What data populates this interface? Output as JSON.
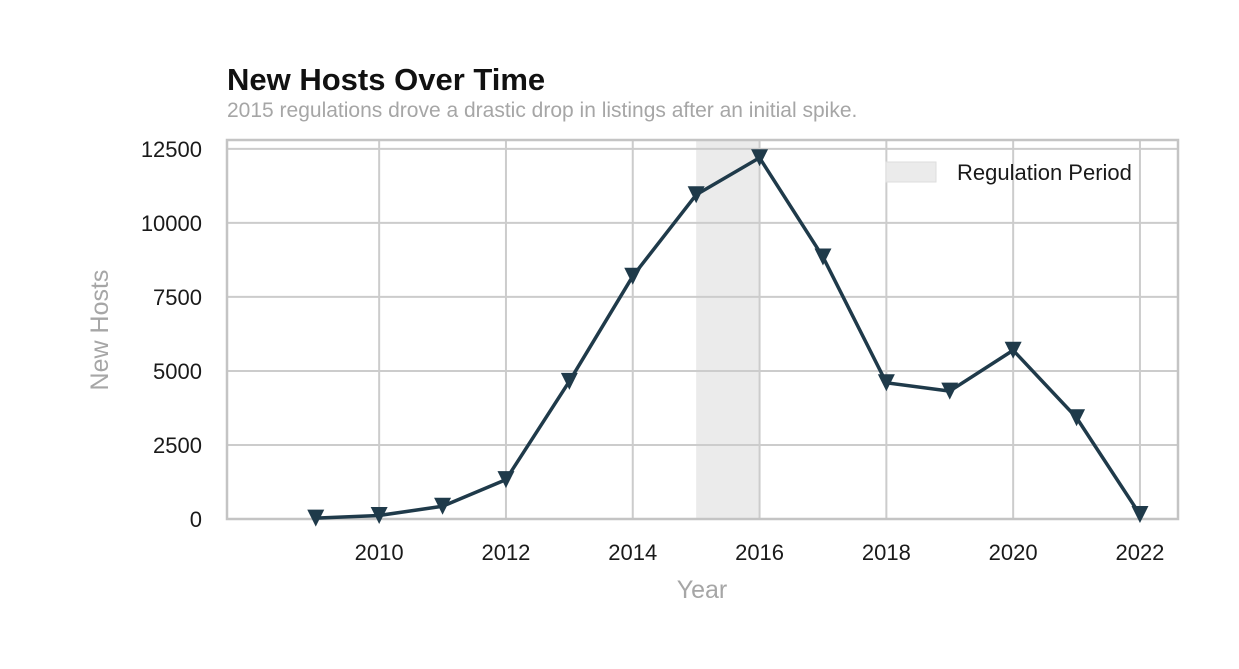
{
  "chart_data": {
    "type": "line",
    "title": "New Hosts Over Time",
    "subtitle": "2015 regulations drove a drastic drop in listings after an initial spike.",
    "xlabel": "Year",
    "ylabel": "New Hosts",
    "x": [
      2009,
      2010,
      2011,
      2012,
      2013,
      2014,
      2015,
      2016,
      2017,
      2018,
      2019,
      2020,
      2021,
      2022
    ],
    "series": [
      {
        "values": [
          30,
          120,
          430,
          1330,
          4650,
          8200,
          10950,
          12200,
          8850,
          4600,
          4320,
          5700,
          3420,
          150
        ],
        "color": "#1f3a4a",
        "marker": "triangle-down"
      }
    ],
    "xlim": [
      2007.6,
      2022.6
    ],
    "ylim": [
      0,
      12800
    ],
    "xticks": [
      2010,
      2012,
      2014,
      2016,
      2018,
      2020,
      2022
    ],
    "yticks": [
      0,
      2500,
      5000,
      7500,
      10000,
      12500
    ],
    "shaded_region": {
      "label": "Regulation Period",
      "x_start": 2015,
      "x_end": 2016,
      "color": "#ebebeb"
    },
    "legend": {
      "position": "top-right",
      "entries": [
        "Regulation Period"
      ]
    },
    "grid": true
  }
}
